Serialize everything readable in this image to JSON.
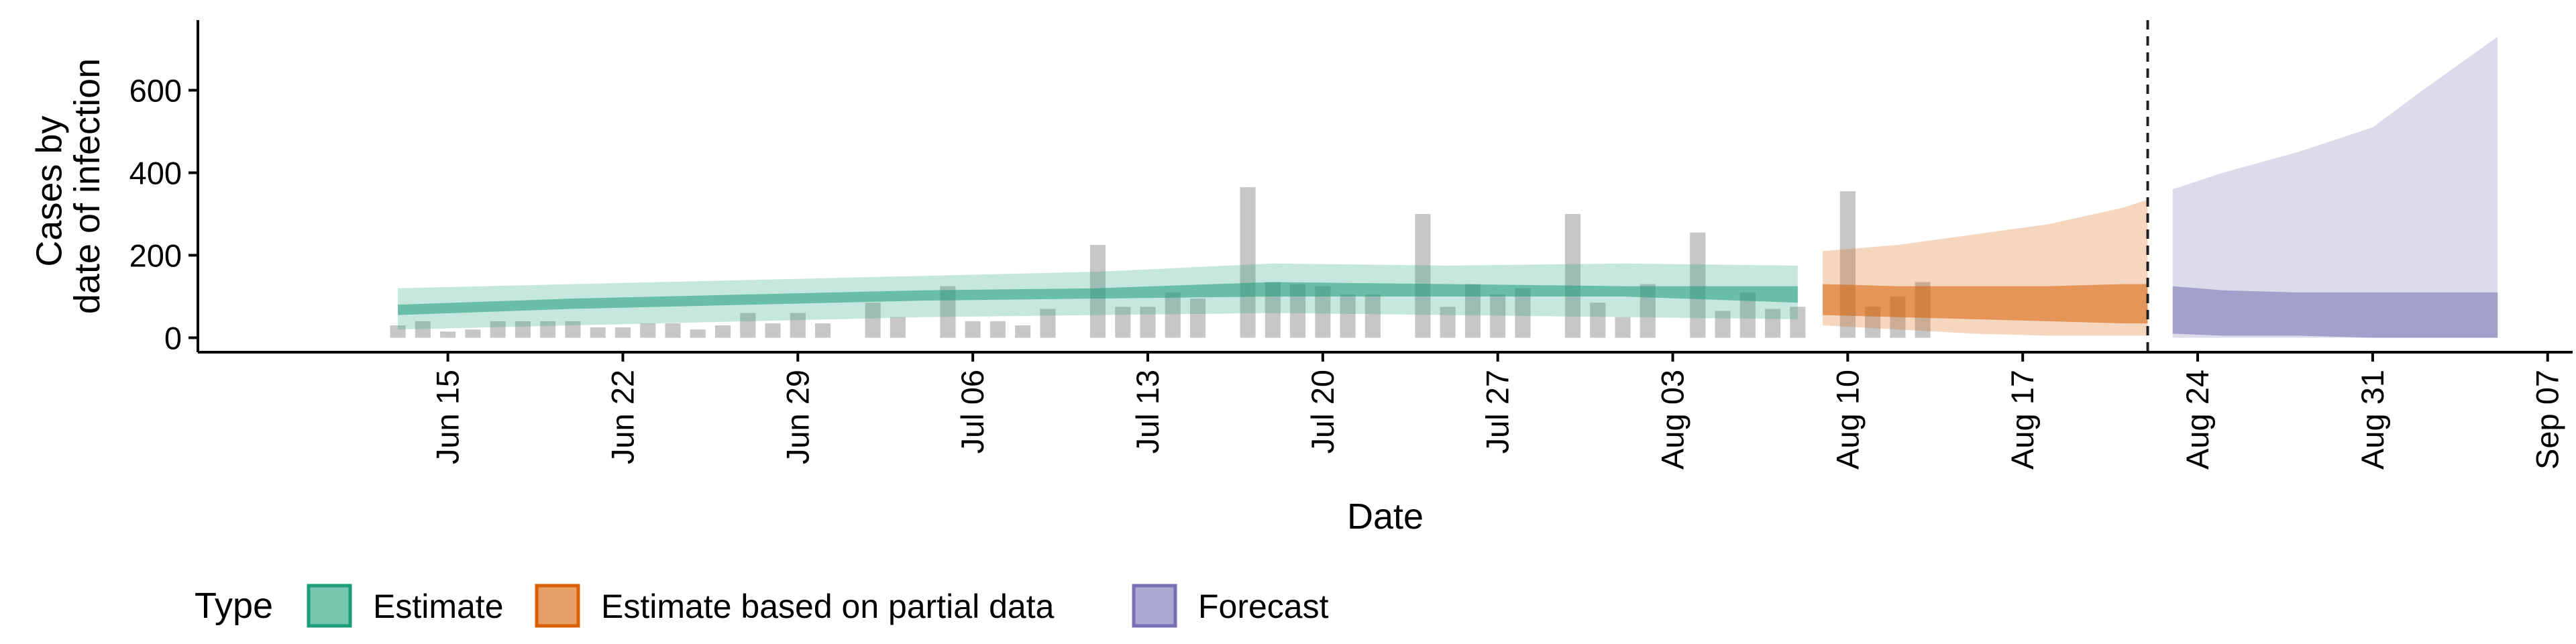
{
  "chart_data": {
    "type": "bar",
    "title": "",
    "xlabel": "Date",
    "ylabel": [
      "Cases by",
      "date of infection"
    ],
    "ylim": [
      -35,
      770
    ],
    "xlim": [
      "2020-06-05",
      "2020-09-08"
    ],
    "yticks": [
      0,
      200,
      400,
      600
    ],
    "ytick_labels": [
      "0",
      "200",
      "400",
      "600"
    ],
    "xticks": [
      "2020-06-15",
      "2020-06-22",
      "2020-06-29",
      "2020-07-06",
      "2020-07-13",
      "2020-07-20",
      "2020-07-27",
      "2020-08-03",
      "2020-08-10",
      "2020-08-17",
      "2020-08-24",
      "2020-08-31",
      "2020-09-07"
    ],
    "xtick_labels": [
      "Jun 15",
      "Jun 22",
      "Jun 29",
      "Jul 06",
      "Jul 13",
      "Jul 20",
      "Jul 27",
      "Aug 03",
      "Aug 10",
      "Aug 17",
      "Aug 24",
      "Aug 31",
      "Sep 07"
    ],
    "cutoff_date": "2020-08-22",
    "grid": false,
    "legend": {
      "title": "Type",
      "placement": "bottom",
      "items": [
        {
          "label": "Estimate",
          "color": "#1b9e77"
        },
        {
          "label": "Estimate based on partial data",
          "color": "#d95f02"
        },
        {
          "label": "Forecast",
          "color": "#7570b3"
        }
      ]
    },
    "bars": {
      "color": "#bdbdbd",
      "start_date": "2020-06-13",
      "values": [
        30,
        40,
        15,
        20,
        40,
        40,
        40,
        40,
        25,
        25,
        35,
        35,
        20,
        30,
        60,
        35,
        60,
        35,
        0,
        85,
        50,
        0,
        125,
        40,
        40,
        30,
        70,
        0,
        225,
        75,
        75,
        110,
        95,
        0,
        365,
        135,
        130,
        125,
        105,
        105,
        0,
        300,
        75,
        130,
        105,
        120,
        0,
        300,
        85,
        50,
        130,
        0,
        255,
        65,
        110,
        70,
        75,
        0,
        355,
        75,
        100,
        135
      ]
    },
    "series": [
      {
        "name": "Estimate",
        "color": "#1b9e77",
        "dates": [
          "2020-06-13",
          "2020-06-20",
          "2020-06-27",
          "2020-07-04",
          "2020-07-11",
          "2020-07-18",
          "2020-07-25",
          "2020-08-01",
          "2020-08-08"
        ],
        "inner_lower": [
          55,
          70,
          80,
          90,
          95,
          100,
          100,
          100,
          85
        ],
        "inner_upper": [
          80,
          95,
          105,
          115,
          120,
          135,
          130,
          125,
          125
        ],
        "outer_lower": [
          20,
          30,
          40,
          50,
          55,
          60,
          55,
          50,
          45
        ],
        "outer_upper": [
          120,
          130,
          140,
          150,
          160,
          180,
          175,
          180,
          175
        ]
      },
      {
        "name": "Estimate based on partial data",
        "color": "#d95f02",
        "dates": [
          "2020-08-09",
          "2020-08-12",
          "2020-08-15",
          "2020-08-18",
          "2020-08-21",
          "2020-08-22"
        ],
        "inner_lower": [
          55,
          50,
          45,
          40,
          35,
          35
        ],
        "inner_upper": [
          130,
          125,
          125,
          125,
          130,
          130
        ],
        "outer_lower": [
          30,
          20,
          10,
          5,
          5,
          5
        ],
        "outer_upper": [
          210,
          225,
          250,
          275,
          315,
          335
        ]
      },
      {
        "name": "Forecast",
        "color": "#7570b3",
        "dates": [
          "2020-08-23",
          "2020-08-25",
          "2020-08-28",
          "2020-08-31",
          "2020-09-02",
          "2020-09-05"
        ],
        "inner_lower": [
          10,
          5,
          5,
          0,
          0,
          0
        ],
        "inner_upper": [
          125,
          115,
          110,
          110,
          110,
          110
        ],
        "outer_lower": [
          0,
          0,
          0,
          0,
          0,
          0
        ],
        "outer_upper": [
          360,
          400,
          450,
          510,
          600,
          730
        ]
      }
    ]
  }
}
